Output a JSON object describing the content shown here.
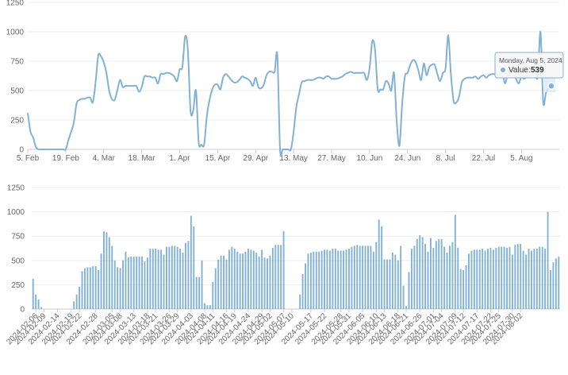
{
  "charts": {
    "line": {
      "type": "line",
      "ylim": [
        0,
        1250
      ],
      "yticks": [
        0,
        250,
        500,
        750,
        1000,
        1250
      ],
      "xticks": [
        {
          "x": "2024-02-05",
          "label": "5. Feb"
        },
        {
          "x": "2024-02-19",
          "label": "19. Feb"
        },
        {
          "x": "2024-03-04",
          "label": "4. Mar"
        },
        {
          "x": "2024-03-18",
          "label": "18. Mar"
        },
        {
          "x": "2024-04-01",
          "label": "1. Apr"
        },
        {
          "x": "2024-04-15",
          "label": "15. Apr"
        },
        {
          "x": "2024-04-29",
          "label": "29. Apr"
        },
        {
          "x": "2024-05-13",
          "label": "13. May"
        },
        {
          "x": "2024-05-27",
          "label": "27. May"
        },
        {
          "x": "2024-06-10",
          "label": "10. Jun"
        },
        {
          "x": "2024-06-24",
          "label": "24. Jun"
        },
        {
          "x": "2024-07-08",
          "label": "8. Jul"
        },
        {
          "x": "2024-07-22",
          "label": "22. Jul"
        },
        {
          "x": "2024-08-05",
          "label": "5. Aug"
        }
      ],
      "tooltip": {
        "date": "Monday, Aug 5, 2024",
        "label": "Value:",
        "value": "539"
      }
    },
    "bar": {
      "type": "bar",
      "ylim": [
        0,
        1250
      ],
      "yticks": [
        0,
        250,
        500,
        750,
        1000,
        1250
      ],
      "xticks": [
        "2024-02-06",
        "2024-02-09",
        "2024-02-14",
        "2024-02-19",
        "2024-02-22",
        "2024-02-28",
        "2024-03-05",
        "2024-03-08",
        "2024-03-13",
        "2024-03-18",
        "2024-03-21",
        "2024-03-26",
        "2024-03-29",
        "2024-04-03",
        "2024-04-08",
        "2024-04-11",
        "2024-04-16",
        "2024-04-19",
        "2024-04-24",
        "2024-04-29",
        "2024-05-02",
        "2024-05-07",
        "2024-05-10",
        "2024-05-17",
        "2024-05-22",
        "2024-05-28",
        "2024-05-31",
        "2024-06-05",
        "2024-06-10",
        "2024-06-13",
        "2024-06-18",
        "2024-06-21",
        "2024-06-26",
        "2024-07-01",
        "2024-07-04",
        "2024-07-09",
        "2024-07-12",
        "2024-07-17",
        "2024-07-22",
        "2024-07-25",
        "2024-07-30",
        "2024-08-02"
      ]
    }
  },
  "chart_data": {
    "type": "line",
    "x_start": "2024-02-05",
    "x_end": "2024-08-05",
    "values": [
      310,
      150,
      100,
      20,
      0,
      0,
      0,
      0,
      0,
      0,
      0,
      0,
      0,
      0,
      0,
      80,
      150,
      230,
      390,
      420,
      430,
      430,
      440,
      440,
      400,
      570,
      800,
      790,
      740,
      650,
      500,
      430,
      420,
      500,
      590,
      530,
      540,
      540,
      540,
      540,
      540,
      490,
      530,
      620,
      620,
      620,
      610,
      610,
      560,
      640,
      640,
      650,
      650,
      640,
      620,
      580,
      680,
      700,
      960,
      850,
      330,
      330,
      500,
      60,
      40,
      40,
      280,
      420,
      510,
      550,
      550,
      510,
      610,
      640,
      620,
      590,
      570,
      570,
      590,
      620,
      610,
      600,
      580,
      540,
      610,
      530,
      520,
      550,
      630,
      660,
      660,
      660,
      800,
      0,
      0,
      0,
      0,
      0,
      150,
      360,
      470,
      570,
      580,
      590,
      590,
      590,
      600,
      610,
      610,
      600,
      620,
      620,
      600,
      600,
      600,
      610,
      620,
      640,
      650,
      660,
      650,
      650,
      650,
      650,
      650,
      590,
      690,
      920,
      850,
      510,
      510,
      510,
      580,
      560,
      500,
      650,
      240,
      30,
      380,
      620,
      650,
      720,
      760,
      740,
      670,
      590,
      730,
      630,
      700,
      720,
      720,
      640,
      580,
      650,
      690,
      970,
      630,
      410,
      400,
      450,
      570,
      600,
      610,
      610,
      610,
      620,
      600,
      620,
      630,
      610,
      630,
      640,
      640,
      640,
      630,
      640,
      560,
      660,
      670,
      670,
      600,
      560,
      620,
      600,
      620,
      620,
      640,
      640,
      620,
      1000,
      400,
      480,
      520,
      539
    ],
    "ylim": [
      0,
      1250
    ],
    "title": "",
    "xlabel": "",
    "ylabel": ""
  }
}
